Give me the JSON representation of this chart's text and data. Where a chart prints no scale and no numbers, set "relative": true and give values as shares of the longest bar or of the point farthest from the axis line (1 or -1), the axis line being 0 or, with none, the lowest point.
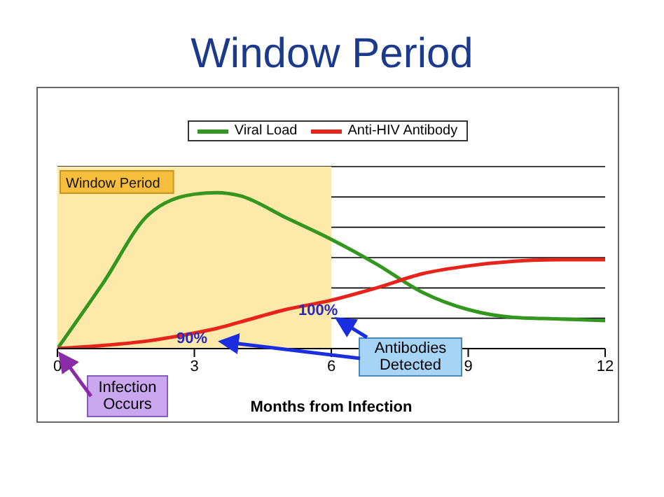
{
  "chart_data": {
    "type": "line",
    "title": "Window Period",
    "xlabel": "Months from Infection",
    "relative": true,
    "x": [
      0,
      1,
      2,
      3,
      3.5,
      4,
      5,
      6,
      7,
      8,
      9,
      10,
      11,
      12
    ],
    "series": [
      {
        "name": "Viral Load",
        "color": "#33961f",
        "values": [
          0,
          0.42,
          0.86,
          0.99,
          1,
          0.98,
          0.84,
          0.7,
          0.54,
          0.36,
          0.25,
          0.2,
          0.19,
          0.18
        ]
      },
      {
        "name": "Anti-HIV Antibody",
        "color": "#e8231b",
        "values": [
          0,
          0.02,
          0.05,
          0.1,
          0.13,
          0.17,
          0.25,
          0.31,
          0.39,
          0.48,
          0.53,
          0.56,
          0.57,
          0.57
        ]
      }
    ],
    "xlim": [
      0,
      12
    ],
    "xticks": [
      0,
      3,
      6,
      9,
      12
    ],
    "bands": [
      {
        "axis": "x",
        "from": 0,
        "to": 6,
        "label": "Window Period",
        "color": "#fde9a9"
      }
    ],
    "annotations": [
      {
        "text": "Infection Occurs",
        "x": 0,
        "y": 0
      },
      "Antibodies Detected",
      "90%",
      "100%"
    ],
    "grid": "y",
    "legend": "top",
    "marker": "none",
    "line_style": "solid"
  }
}
